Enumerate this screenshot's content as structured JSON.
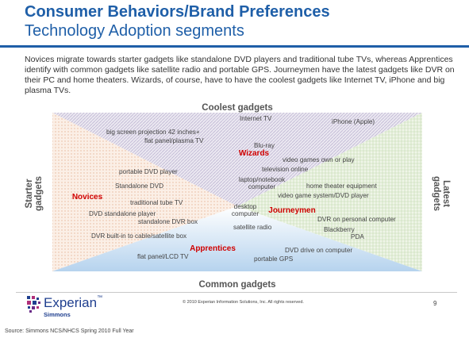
{
  "header": {
    "title": "Consumer Behaviors/Brand Preferences",
    "subtitle": "Technology Adoption segments"
  },
  "intro": "Novices migrate towards starter gadgets like standalone DVD players and traditional tube TVs, whereas Apprentices identify with common gadgets like satellite radio and portable GPS. Journeymen have the latest gadgets like DVR on their PC and home theaters. Wizards, of course, have to have the coolest gadgets like Internet TV, iPhone and big plasma TVs.",
  "axes": {
    "top": "Coolest gadgets",
    "bottom": "Common gadgets",
    "left_line1": "Starter",
    "left_line2": "gadgets",
    "right_line1": "Latest",
    "right_line2": "gadgets"
  },
  "segments": {
    "wizards": "Wizards",
    "novices": "Novices",
    "journeymen": "Journeymen",
    "apprentices": "Apprentices"
  },
  "gadgets": {
    "internet_tv": "Internet TV",
    "iphone": "iPhone (Apple)",
    "big_screen": "big screen projection 42 inches+",
    "flat_plasma": "flat panel/plasma TV",
    "bluray": "Blu-ray",
    "video_games_own": "video games own or play",
    "portable_dvd": "portable DVD player",
    "television_online": "television online",
    "standalone_dvd": "Standalone DVD",
    "laptop_line1": "laptop/notebook",
    "laptop_line2": "computer",
    "home_theater": "home theater equipment",
    "video_game_system": "video game system/DVD player",
    "traditional_tube": "traditional tube TV",
    "desktop_line1": "desktop",
    "desktop_line2": "computer",
    "dvd_standalone_player": "DVD standalone player",
    "standalone_dvr": "standalone DVR box",
    "dvr_pc": "DVR on personal computer",
    "satellite_radio": "satellite radio",
    "blackberry": "Blackberry",
    "dvr_builtin": "DVR built-in to cable/satellite box",
    "pda": "PDA",
    "dvd_drive": "DVD drive on computer",
    "flat_lcd": "flat panel/LCD TV",
    "portable_gps": "portable GPS"
  },
  "footer": {
    "logo": "Experian",
    "logo_tm": "™",
    "logo_sub": "Simmons",
    "copyright": "© 2010 Experian Information Solutions, Inc.  All rights reserved.",
    "page": "9",
    "source": "Source:  Simmons NCS/NHCS Spring 2010 Full Year"
  },
  "colors": {
    "title": "#1f5fa8",
    "top_triangle": "#cfcadb",
    "left_triangle": "#f3d9c9",
    "right_triangle": "#dbe9cf",
    "bottom_triangle": "#c9def2",
    "segment_label": "#d00000"
  }
}
